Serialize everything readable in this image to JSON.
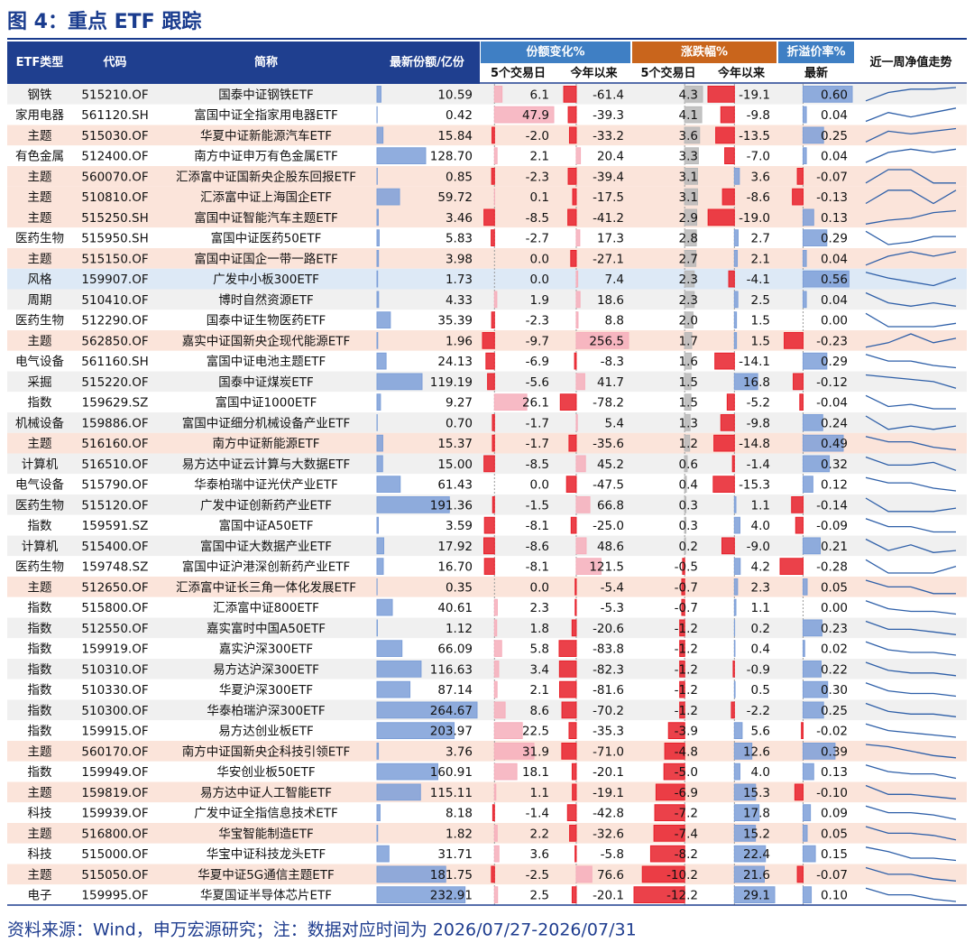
{
  "title": "图 4：重点 ETF 跟踪",
  "table": {
    "header_groups": [
      {
        "label": "份额变化%",
        "color": "#3f7fc4"
      },
      {
        "label": "涨跌幅%",
        "color": "#c9651c"
      },
      {
        "label": "折溢价率%",
        "color": "#3f7fc4"
      }
    ],
    "columns": [
      {
        "label": "ETF类型"
      },
      {
        "label": "代码"
      },
      {
        "label": "简称"
      },
      {
        "label": "最新份额/亿份",
        "bar": {
          "pos": "#7d9fd8",
          "neg": "#e8202a"
        }
      },
      {
        "label": "5个交易日",
        "bar": {
          "pos": "#f6aebb",
          "neg": "#e8202a"
        }
      },
      {
        "label": "今年以来",
        "bar": {
          "pos": "#f6aebb",
          "neg": "#e8202a"
        }
      },
      {
        "label": "5个交易日",
        "bar": {
          "pos": "#b8b8b8",
          "neg": "#e8202a"
        }
      },
      {
        "label": "今年以来",
        "bar": {
          "pos": "#7d9fd8",
          "neg": "#e8202a"
        }
      },
      {
        "label": "最新",
        "bar": {
          "pos": "#7d9fd8",
          "neg": "#e8202a"
        }
      },
      {
        "label": "近一周净值走势",
        "line": "#2e5fa8"
      }
    ],
    "rows": [
      [
        "钢铁",
        "515210.OF",
        "国泰中证钢铁ETF",
        "10.59",
        "6.1",
        "-61.4",
        "4.3",
        "-19.1",
        "0.60"
      ],
      [
        "家用电器",
        "561120.SH",
        "富国中证全指家用电器ETF",
        "0.42",
        "47.9",
        "-39.3",
        "4.1",
        "-9.8",
        "0.04"
      ],
      [
        "主题",
        "515030.OF",
        "华夏中证新能源汽车ETF",
        "15.84",
        "-2.0",
        "-33.2",
        "3.6",
        "-13.5",
        "0.25"
      ],
      [
        "有色金属",
        "512400.OF",
        "南方中证申万有色金属ETF",
        "128.70",
        "2.1",
        "20.4",
        "3.3",
        "-7.0",
        "0.04"
      ],
      [
        "主题",
        "560070.OF",
        "汇添富中证国新央企股东回报ETF",
        "0.85",
        "-2.3",
        "-39.4",
        "3.1",
        "3.6",
        "-0.07"
      ],
      [
        "主题",
        "510810.OF",
        "汇添富中证上海国企ETF",
        "59.72",
        "0.1",
        "-17.5",
        "3.1",
        "-8.6",
        "-0.13"
      ],
      [
        "主题",
        "515250.SH",
        "富国中证智能汽车主题ETF",
        "3.46",
        "-8.5",
        "-41.2",
        "2.9",
        "-19.0",
        "0.13"
      ],
      [
        "医药生物",
        "515950.SH",
        "富国中证医药50ETF",
        "5.83",
        "-2.7",
        "17.3",
        "2.8",
        "2.7",
        "0.29"
      ],
      [
        "主题",
        "515150.OF",
        "富国中证国企一带一路ETF",
        "3.98",
        "0.0",
        "-27.1",
        "2.7",
        "2.1",
        "0.04"
      ],
      [
        "风格",
        "159907.OF",
        "广发中小板300ETF",
        "1.73",
        "0.0",
        "7.4",
        "2.3",
        "-4.1",
        "0.56"
      ],
      [
        "周期",
        "510410.OF",
        "博时自然资源ETF",
        "4.33",
        "1.9",
        "18.6",
        "2.3",
        "2.5",
        "0.04"
      ],
      [
        "医药生物",
        "512290.OF",
        "国泰中证生物医药ETF",
        "35.39",
        "-2.3",
        "8.8",
        "2.0",
        "1.5",
        "0.00"
      ],
      [
        "主题",
        "562850.OF",
        "嘉实中证国新央企现代能源ETF",
        "1.96",
        "-9.7",
        "256.5",
        "1.7",
        "1.5",
        "-0.23"
      ],
      [
        "电气设备",
        "561160.SH",
        "富国中证电池主题ETF",
        "24.13",
        "-6.9",
        "-8.3",
        "1.6",
        "-14.1",
        "0.29"
      ],
      [
        "采掘",
        "515220.OF",
        "国泰中证煤炭ETF",
        "119.19",
        "-5.6",
        "41.7",
        "1.5",
        "16.8",
        "-0.12"
      ],
      [
        "指数",
        "159629.SZ",
        "富国中证1000ETF",
        "9.27",
        "26.1",
        "-78.2",
        "1.5",
        "-5.2",
        "-0.04"
      ],
      [
        "机械设备",
        "159886.OF",
        "富国中证细分机械设备产业ETF",
        "0.70",
        "-1.7",
        "5.4",
        "1.3",
        "-9.8",
        "0.24"
      ],
      [
        "主题",
        "516160.OF",
        "南方中证新能源ETF",
        "15.37",
        "-1.7",
        "-35.6",
        "1.2",
        "-14.8",
        "0.49"
      ],
      [
        "计算机",
        "516510.OF",
        "易方达中证云计算与大数据ETF",
        "15.00",
        "-8.5",
        "45.2",
        "0.6",
        "-1.4",
        "0.32"
      ],
      [
        "电气设备",
        "515790.OF",
        "华泰柏瑞中证光伏产业ETF",
        "61.43",
        "0.0",
        "-47.5",
        "0.4",
        "-15.3",
        "0.12"
      ],
      [
        "医药生物",
        "515120.OF",
        "广发中证创新药产业ETF",
        "191.36",
        "-1.5",
        "66.8",
        "0.3",
        "1.1",
        "-0.14"
      ],
      [
        "指数",
        "159591.SZ",
        "富国中证A50ETF",
        "3.59",
        "-8.1",
        "-25.0",
        "0.3",
        "4.0",
        "-0.09"
      ],
      [
        "计算机",
        "515400.OF",
        "富国中证大数据产业ETF",
        "17.92",
        "-8.6",
        "48.6",
        "0.2",
        "-9.0",
        "0.21"
      ],
      [
        "医药生物",
        "159748.SZ",
        "富国中证沪港深创新药产业ETF",
        "16.70",
        "-8.1",
        "121.5",
        "-0.5",
        "4.2",
        "-0.28"
      ],
      [
        "主题",
        "512650.OF",
        "汇添富中证长三角一体化发展ETF",
        "0.35",
        "0.0",
        "-5.4",
        "-0.7",
        "2.3",
        "0.05"
      ],
      [
        "指数",
        "515800.OF",
        "汇添富中证800ETF",
        "40.61",
        "2.3",
        "-5.3",
        "-0.7",
        "1.1",
        "0.00"
      ],
      [
        "指数",
        "512550.OF",
        "嘉实富时中国A50ETF",
        "1.12",
        "1.8",
        "-20.6",
        "-1.2",
        "0.2",
        "0.23"
      ],
      [
        "指数",
        "159919.OF",
        "嘉实沪深300ETF",
        "66.09",
        "5.8",
        "-83.8",
        "-1.2",
        "0.4",
        "0.02"
      ],
      [
        "指数",
        "510310.OF",
        "易方达沪深300ETF",
        "116.63",
        "3.4",
        "-82.3",
        "-1.2",
        "-0.9",
        "0.22"
      ],
      [
        "指数",
        "510330.OF",
        "华夏沪深300ETF",
        "87.14",
        "2.1",
        "-81.6",
        "-1.2",
        "0.5",
        "0.30"
      ],
      [
        "指数",
        "510300.OF",
        "华泰柏瑞沪深300ETF",
        "264.67",
        "8.6",
        "-70.2",
        "-1.2",
        "-2.2",
        "0.25"
      ],
      [
        "指数",
        "159915.OF",
        "易方达创业板ETF",
        "203.97",
        "22.5",
        "-35.3",
        "-3.9",
        "5.6",
        "-0.02"
      ],
      [
        "主题",
        "560170.OF",
        "南方中证国新央企科技引领ETF",
        "3.76",
        "31.9",
        "-71.0",
        "-4.8",
        "12.6",
        "0.39"
      ],
      [
        "指数",
        "159949.OF",
        "华安创业板50ETF",
        "160.91",
        "18.1",
        "-20.1",
        "-5.0",
        "4.0",
        "0.13"
      ],
      [
        "主题",
        "159819.OF",
        "易方达中证人工智能ETF",
        "115.11",
        "1.1",
        "-19.1",
        "-6.9",
        "15.3",
        "-0.10"
      ],
      [
        "科技",
        "159939.OF",
        "广发中证全指信息技术ETF",
        "8.18",
        "-1.4",
        "-42.8",
        "-7.2",
        "17.8",
        "0.09"
      ],
      [
        "主题",
        "516800.OF",
        "华宝智能制造ETF",
        "1.82",
        "2.2",
        "-32.6",
        "-7.4",
        "15.2",
        "0.05"
      ],
      [
        "科技",
        "515000.OF",
        "华宝中证科技龙头ETF",
        "31.71",
        "3.6",
        "-5.8",
        "-8.2",
        "22.4",
        "0.15"
      ],
      [
        "主题",
        "515050.OF",
        "华夏中证5G通信主题ETF",
        "181.75",
        "-2.5",
        "76.6",
        "-10.2",
        "21.6",
        "-0.07"
      ],
      [
        "电子",
        "159995.OF",
        "华夏国证半导体芯片ETF",
        "232.91",
        "2.5",
        "-20.1",
        "-12.2",
        "29.1",
        "0.10"
      ]
    ],
    "row_colors": [
      "#f0f0f0",
      "#ffffff",
      "#fbe4da",
      "#ffffff",
      "#fbe4da",
      "#fbe4da",
      "#fbe4da",
      "#ffffff",
      "#fbe4da",
      "#dde9f6",
      "#f0f0f0",
      "#ffffff",
      "#fbe4da",
      "#ffffff",
      "#f0f0f0",
      "#ffffff",
      "#f0f0f0",
      "#fbe4da",
      "#f0f0f0",
      "#ffffff",
      "#f0f0f0",
      "#ffffff",
      "#f0f0f0",
      "#ffffff",
      "#fbe4da",
      "#ffffff",
      "#f0f0f0",
      "#ffffff",
      "#f0f0f0",
      "#ffffff",
      "#f0f0f0",
      "#ffffff",
      "#fbe4da",
      "#ffffff",
      "#fbe4da",
      "#ffffff",
      "#fbe4da",
      "#ffffff",
      "#fbe4da",
      "#ffffff"
    ],
    "trends": [
      [
        1,
        6,
        8,
        8,
        9
      ],
      [
        2,
        6,
        4,
        6,
        8
      ],
      [
        3,
        7,
        6,
        7,
        8
      ],
      [
        4,
        7,
        8,
        7,
        8
      ],
      [
        6,
        7,
        7,
        6,
        6
      ],
      [
        5,
        6,
        6,
        5,
        6
      ],
      [
        2,
        4,
        5,
        8,
        9
      ],
      [
        8,
        3,
        4,
        6,
        6
      ],
      [
        4,
        6,
        7,
        6,
        7
      ],
      [
        9,
        6,
        4,
        2,
        6
      ],
      [
        8,
        5,
        4,
        5,
        4
      ],
      [
        8,
        4,
        4,
        4,
        5
      ],
      [
        5,
        6,
        8,
        6,
        7
      ],
      [
        9,
        6,
        6,
        4,
        3
      ],
      [
        8,
        7,
        6,
        5,
        2
      ],
      [
        8,
        3,
        4,
        2,
        2
      ],
      [
        7,
        3,
        4,
        3,
        4
      ],
      [
        8,
        6,
        6,
        4,
        3
      ],
      [
        7,
        4,
        4,
        5,
        2
      ],
      [
        8,
        6,
        6,
        4,
        3
      ],
      [
        7,
        3,
        3,
        3,
        4
      ],
      [
        8,
        5,
        5,
        3,
        3
      ],
      [
        9,
        3,
        6,
        2,
        3
      ],
      [
        7,
        3,
        3,
        3,
        5
      ],
      [
        7,
        6,
        6,
        5,
        5
      ],
      [
        8,
        5,
        4,
        4,
        3
      ],
      [
        8,
        5,
        5,
        4,
        3
      ],
      [
        8,
        5,
        4,
        4,
        3
      ],
      [
        8,
        5,
        4,
        4,
        3
      ],
      [
        8,
        5,
        4,
        4,
        3
      ],
      [
        8,
        5,
        4,
        4,
        3
      ],
      [
        8,
        5,
        4,
        3,
        2
      ],
      [
        8,
        7,
        5,
        3,
        2
      ],
      [
        8,
        5,
        4,
        4,
        2
      ],
      [
        8,
        4,
        4,
        3,
        2
      ],
      [
        8,
        5,
        5,
        4,
        2
      ],
      [
        8,
        5,
        5,
        4,
        2
      ],
      [
        8,
        6,
        3,
        3,
        2
      ],
      [
        8,
        5,
        5,
        3,
        2
      ],
      [
        8,
        5,
        5,
        3,
        2
      ]
    ]
  },
  "footer": "资料来源：Wind，申万宏源研究；注：数据对应时间为 2026/07/27-2026/07/31"
}
